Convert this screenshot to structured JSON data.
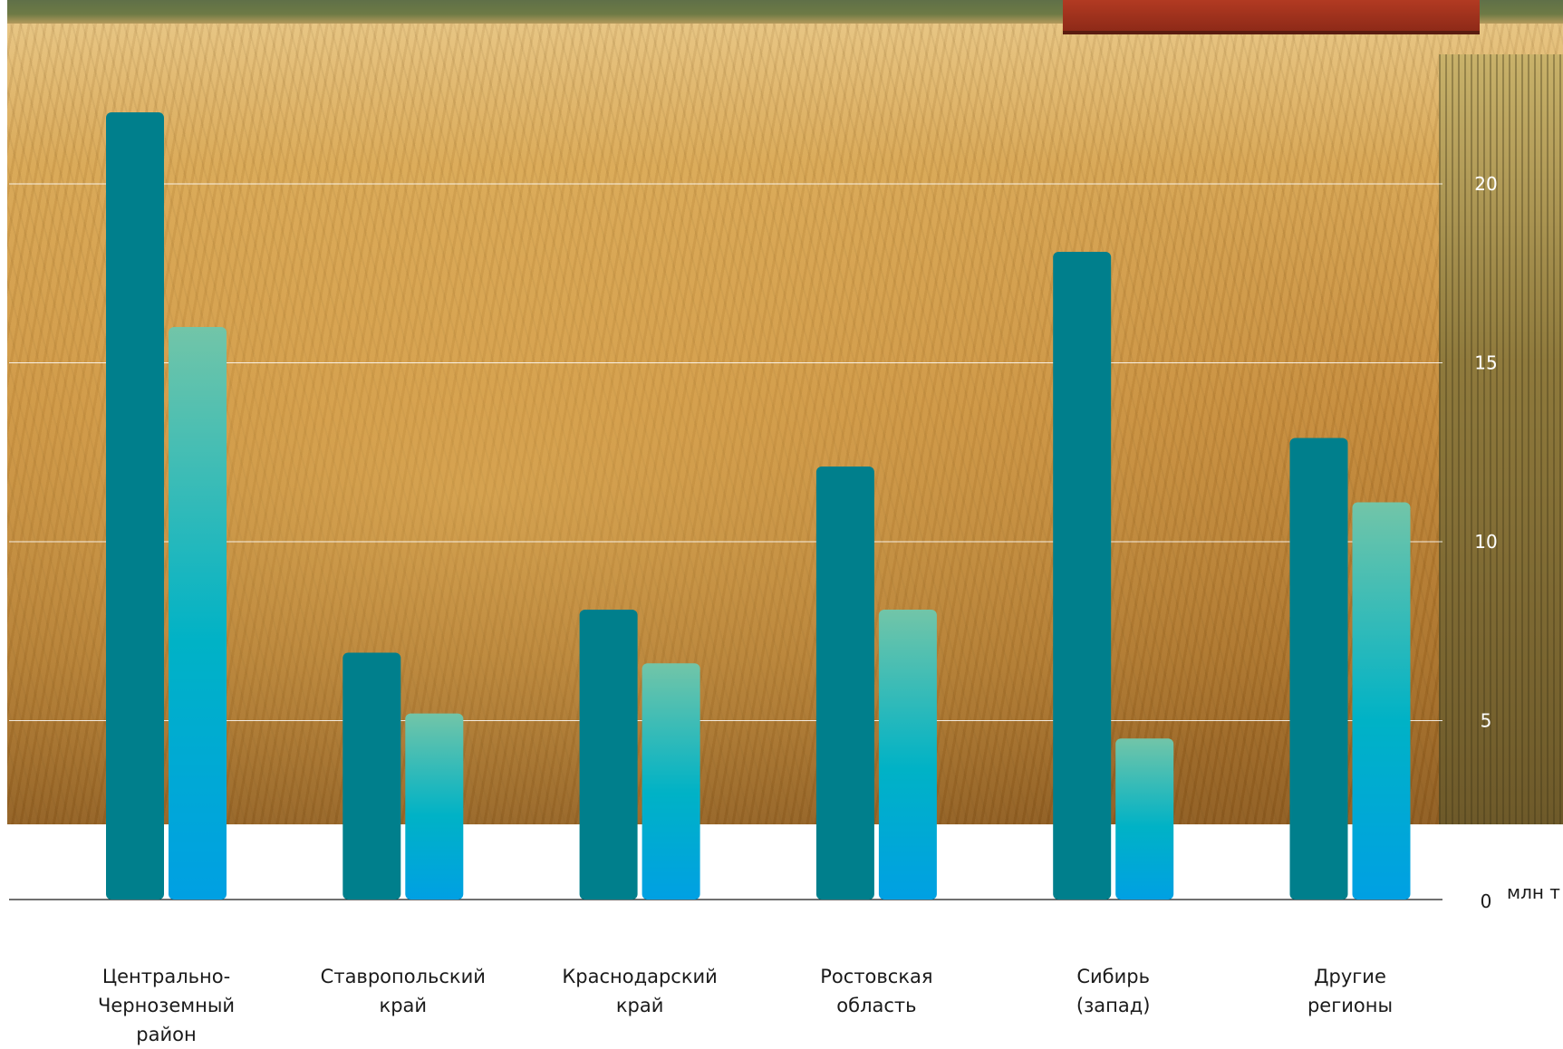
{
  "chart_data": {
    "type": "bar",
    "categories": [
      "Центрально-\nЧерноземный\nрайон",
      "Ставропольский\nкрай",
      "Краснодарский\nкрай",
      "Ростовская\nобласть",
      "Сибирь\n(запад)",
      "Другие\nрегионы"
    ],
    "series": [
      {
        "color": "#007f8c",
        "values": [
          22,
          6.9,
          8.1,
          12.1,
          18.1,
          12.9
        ]
      },
      {
        "color_top": "#72c5a8",
        "color_mid": "#00b2c6",
        "color_bottom": "#00a0e3",
        "values": [
          16,
          5.2,
          6.6,
          8.1,
          4.5,
          11.1
        ]
      }
    ],
    "y_ticks": [
      0,
      5,
      10,
      15,
      20
    ],
    "y_tick_labels": [
      "0",
      "5",
      "10",
      "15",
      "20"
    ],
    "ylim": [
      0,
      25
    ],
    "unit": "млн т",
    "grid": true
  },
  "background": {
    "subject": "wheat-field-photo"
  }
}
